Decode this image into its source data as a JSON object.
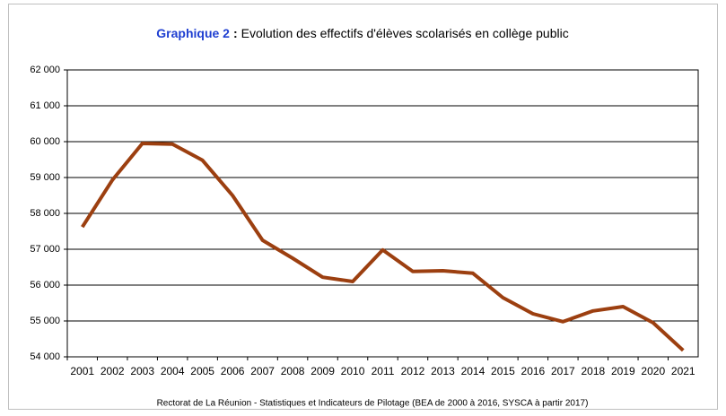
{
  "chart_data": {
    "type": "line",
    "title_label": "Graphique 2",
    "title_separator": ":",
    "title": "Evolution des effectifs d'élèves scolarisés en collège public",
    "source": "Rectorat de La Réunion - Statistiques et Indicateurs de Pilotage (BEA de 2000 à 2016, SYSCA à partir 2017)",
    "categories": [
      "2001",
      "2002",
      "2003",
      "2004",
      "2005",
      "2006",
      "2007",
      "2008",
      "2009",
      "2010",
      "2011",
      "2012",
      "2013",
      "2014",
      "2015",
      "2016",
      "2017",
      "2018",
      "2019",
      "2020",
      "2021"
    ],
    "values": [
      57620,
      58930,
      59950,
      59930,
      59480,
      58500,
      57250,
      56750,
      56220,
      56100,
      56980,
      56380,
      56400,
      56330,
      55650,
      55200,
      54980,
      55280,
      55400,
      54950,
      54180
    ],
    "color": "#9c3f10",
    "ylim": [
      54000,
      62000
    ],
    "yticks": [
      {
        "value": 54000,
        "label": "54 000"
      },
      {
        "value": 55000,
        "label": "55 000"
      },
      {
        "value": 56000,
        "label": "56 000"
      },
      {
        "value": 57000,
        "label": "57 000"
      },
      {
        "value": 58000,
        "label": "58 000"
      },
      {
        "value": 59000,
        "label": "59 000"
      },
      {
        "value": 60000,
        "label": "60 000"
      },
      {
        "value": 61000,
        "label": "61 000"
      },
      {
        "value": 62000,
        "label": "62 000"
      }
    ],
    "grid": true
  }
}
